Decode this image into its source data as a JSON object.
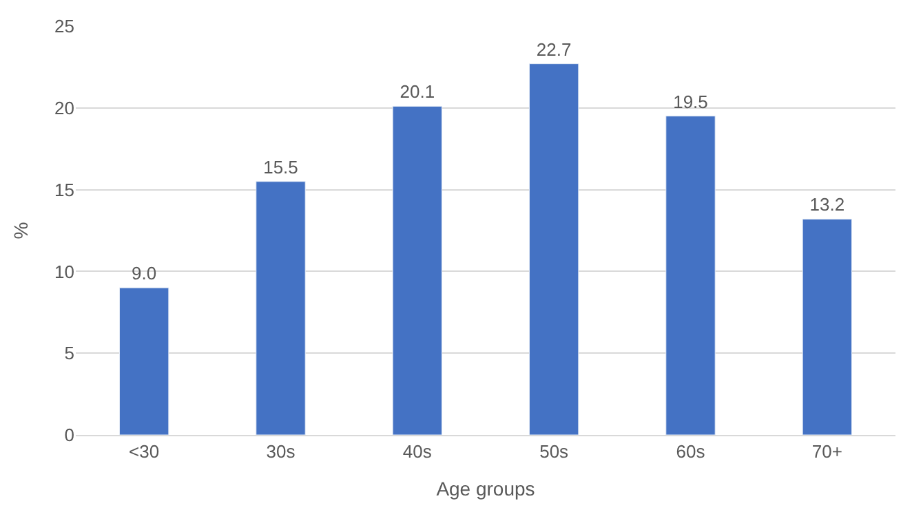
{
  "chart_data": {
    "type": "bar",
    "xlabel": "Age groups",
    "ylabel": "%",
    "categories": [
      "<30",
      "30s",
      "40s",
      "50s",
      "60s",
      "70+"
    ],
    "values": [
      9.0,
      15.5,
      20.1,
      22.7,
      19.5,
      13.2
    ],
    "value_labels": [
      "9.0",
      "15.5",
      "20.1",
      "22.7",
      "19.5",
      "13.2"
    ],
    "color": "#4472c4",
    "ylim": [
      0,
      25
    ],
    "yticks": [
      0,
      5,
      10,
      15,
      20,
      25
    ],
    "grid": "y",
    "legend": false
  }
}
